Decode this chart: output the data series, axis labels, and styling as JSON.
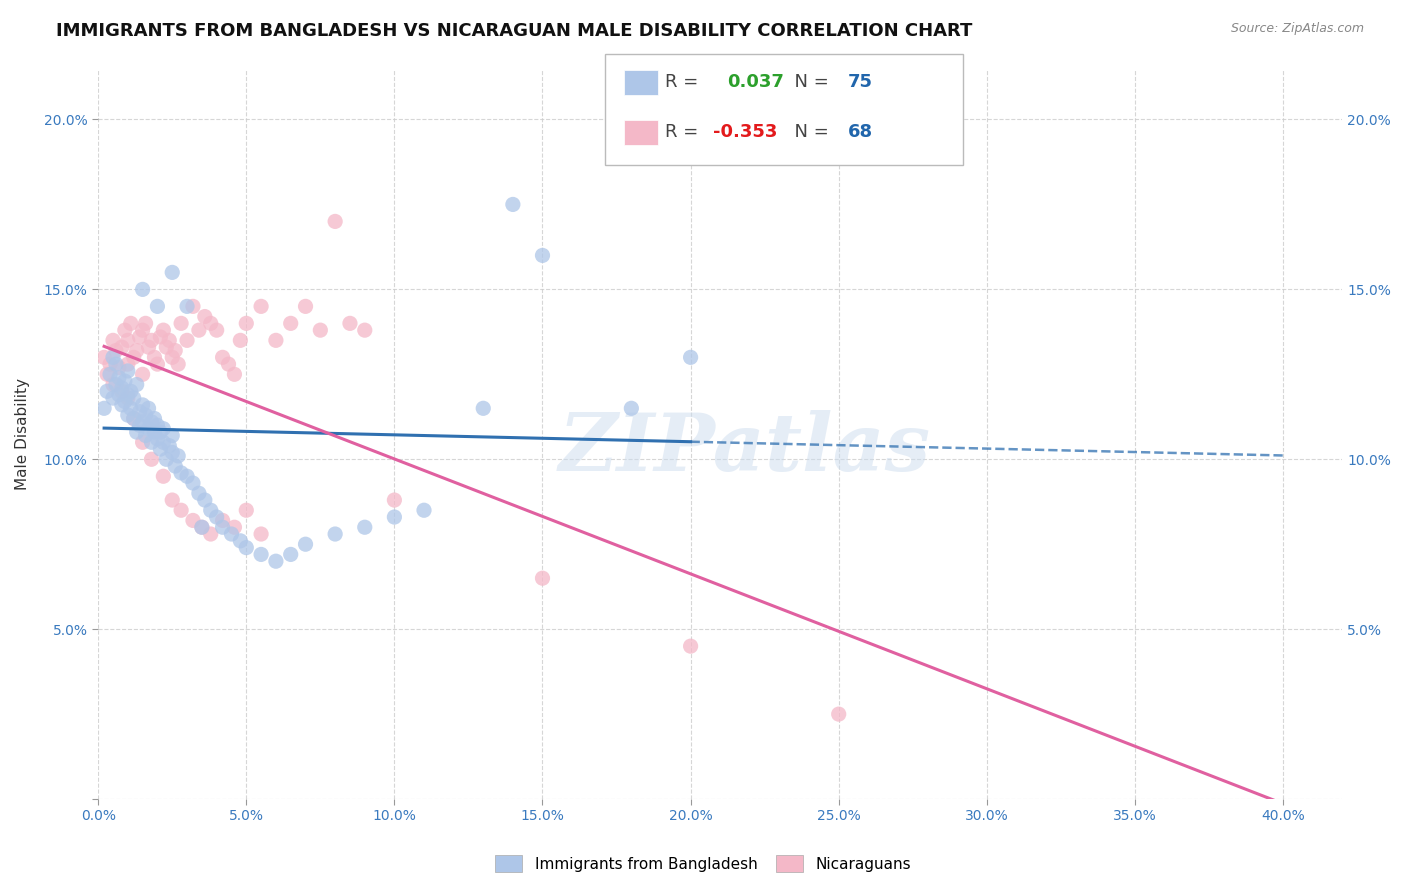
{
  "title": "IMMIGRANTS FROM BANGLADESH VS NICARAGUAN MALE DISABILITY CORRELATION CHART",
  "source": "Source: ZipAtlas.com",
  "ylabel": "Male Disability",
  "ytick_vals": [
    0.0,
    0.05,
    0.1,
    0.15,
    0.2
  ],
  "xtick_vals": [
    0.0,
    0.05,
    0.1,
    0.15,
    0.2,
    0.25,
    0.3,
    0.35,
    0.4
  ],
  "xlim": [
    0.0,
    0.42
  ],
  "ylim": [
    0.0,
    0.215
  ],
  "legend1_r": "0.037",
  "legend1_n": "75",
  "legend2_r": "-0.353",
  "legend2_n": "68",
  "color_blue": "#aec6e8",
  "color_pink": "#f4b8c8",
  "color_blue_line": "#3070b0",
  "color_pink_line": "#e060a0",
  "legend_label1": "Immigrants from Bangladesh",
  "legend_label2": "Nicaraguans",
  "watermark": "ZIPatlas",
  "bg_color": "#ffffff",
  "grid_color": "#cccccc",
  "scatter_size": 120,
  "scatter_alpha": 0.75,
  "bangladesh_x": [
    0.002,
    0.003,
    0.004,
    0.005,
    0.005,
    0.006,
    0.006,
    0.007,
    0.007,
    0.008,
    0.008,
    0.009,
    0.009,
    0.01,
    0.01,
    0.01,
    0.011,
    0.011,
    0.012,
    0.012,
    0.013,
    0.013,
    0.014,
    0.014,
    0.015,
    0.015,
    0.016,
    0.016,
    0.017,
    0.017,
    0.018,
    0.018,
    0.019,
    0.019,
    0.02,
    0.02,
    0.021,
    0.021,
    0.022,
    0.022,
    0.023,
    0.024,
    0.025,
    0.025,
    0.026,
    0.027,
    0.028,
    0.03,
    0.032,
    0.034,
    0.036,
    0.038,
    0.04,
    0.042,
    0.045,
    0.048,
    0.05,
    0.055,
    0.06,
    0.065,
    0.07,
    0.08,
    0.09,
    0.1,
    0.11,
    0.13,
    0.14,
    0.15,
    0.18,
    0.2,
    0.015,
    0.02,
    0.025,
    0.03,
    0.035
  ],
  "bangladesh_y": [
    0.115,
    0.12,
    0.125,
    0.13,
    0.118,
    0.122,
    0.128,
    0.119,
    0.124,
    0.116,
    0.121,
    0.117,
    0.123,
    0.126,
    0.113,
    0.119,
    0.12,
    0.115,
    0.118,
    0.112,
    0.122,
    0.108,
    0.114,
    0.11,
    0.116,
    0.111,
    0.107,
    0.113,
    0.109,
    0.115,
    0.105,
    0.111,
    0.108,
    0.112,
    0.106,
    0.11,
    0.103,
    0.108,
    0.105,
    0.109,
    0.1,
    0.104,
    0.102,
    0.107,
    0.098,
    0.101,
    0.096,
    0.095,
    0.093,
    0.09,
    0.088,
    0.085,
    0.083,
    0.08,
    0.078,
    0.076,
    0.074,
    0.072,
    0.07,
    0.072,
    0.075,
    0.078,
    0.08,
    0.083,
    0.085,
    0.115,
    0.175,
    0.16,
    0.115,
    0.13,
    0.15,
    0.145,
    0.155,
    0.145,
    0.08
  ],
  "nicaragua_x": [
    0.002,
    0.003,
    0.004,
    0.005,
    0.005,
    0.006,
    0.007,
    0.008,
    0.008,
    0.009,
    0.01,
    0.01,
    0.011,
    0.012,
    0.013,
    0.014,
    0.015,
    0.015,
    0.016,
    0.017,
    0.018,
    0.019,
    0.02,
    0.021,
    0.022,
    0.023,
    0.024,
    0.025,
    0.026,
    0.027,
    0.028,
    0.03,
    0.032,
    0.034,
    0.036,
    0.038,
    0.04,
    0.042,
    0.044,
    0.046,
    0.048,
    0.05,
    0.055,
    0.06,
    0.065,
    0.07,
    0.075,
    0.08,
    0.085,
    0.09,
    0.01,
    0.012,
    0.015,
    0.018,
    0.022,
    0.025,
    0.028,
    0.032,
    0.035,
    0.038,
    0.042,
    0.046,
    0.05,
    0.055,
    0.1,
    0.15,
    0.2,
    0.25
  ],
  "nicaragua_y": [
    0.13,
    0.125,
    0.128,
    0.135,
    0.122,
    0.132,
    0.127,
    0.133,
    0.12,
    0.138,
    0.135,
    0.128,
    0.14,
    0.13,
    0.132,
    0.136,
    0.138,
    0.125,
    0.14,
    0.133,
    0.135,
    0.13,
    0.128,
    0.136,
    0.138,
    0.133,
    0.135,
    0.13,
    0.132,
    0.128,
    0.14,
    0.135,
    0.145,
    0.138,
    0.142,
    0.14,
    0.138,
    0.13,
    0.128,
    0.125,
    0.135,
    0.14,
    0.145,
    0.135,
    0.14,
    0.145,
    0.138,
    0.17,
    0.14,
    0.138,
    0.118,
    0.112,
    0.105,
    0.1,
    0.095,
    0.088,
    0.085,
    0.082,
    0.08,
    0.078,
    0.082,
    0.08,
    0.085,
    0.078,
    0.088,
    0.065,
    0.045,
    0.025
  ]
}
